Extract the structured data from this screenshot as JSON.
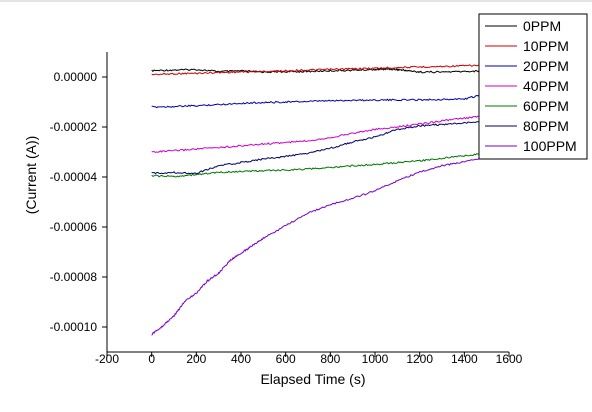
{
  "chart_data": {
    "type": "line",
    "title": "",
    "xlabel": "Elapsed Time (s)",
    "ylabel": "(Current (A))",
    "xlim": [
      -200,
      1600
    ],
    "ylim": [
      -0.00011,
      1e-05
    ],
    "x_ticks": [
      -200,
      0,
      200,
      400,
      600,
      800,
      1000,
      1200,
      1400,
      1600
    ],
    "x_tick_labels": [
      "-200",
      "0",
      "200",
      "400",
      "600",
      "800",
      "1000",
      "1200",
      "1400",
      "1600"
    ],
    "y_ticks": [
      0,
      -2e-05,
      -4e-05,
      -6e-05,
      -8e-05,
      -0.0001
    ],
    "y_tick_labels": [
      "0.00000",
      "-0.00002",
      "-0.00004",
      "-0.00006",
      "-0.00008",
      "-0.00010"
    ],
    "grid": false,
    "legend_position": "top-right",
    "series": [
      {
        "name": "0PPM",
        "color": "#000000",
        "x": [
          0,
          100,
          200,
          300,
          400,
          500,
          600,
          700,
          800,
          900,
          1000,
          1050,
          1100,
          1150,
          1200,
          1300,
          1400,
          1500
        ],
        "y": [
          2.5e-06,
          2.8e-06,
          3e-06,
          2.2e-06,
          2.4e-06,
          2e-06,
          2.1e-06,
          2.2e-06,
          2.5e-06,
          2.7e-06,
          3e-06,
          3.2e-06,
          3e-06,
          2.5e-06,
          2e-06,
          2e-06,
          2.2e-06,
          2.5e-06
        ]
      },
      {
        "name": "10PPM",
        "color": "#cc0000",
        "x": [
          0,
          100,
          200,
          300,
          400,
          500,
          600,
          700,
          800,
          900,
          1000,
          1100,
          1200,
          1300,
          1400,
          1500
        ],
        "y": [
          1e-06,
          1.3e-06,
          1.5e-06,
          1.8e-06,
          2e-06,
          2.2e-06,
          2.5e-06,
          2.8e-06,
          3e-06,
          3.3e-06,
          3.5e-06,
          3.8e-06,
          4e-06,
          4.2e-06,
          4.5e-06,
          4.7e-06
        ]
      },
      {
        "name": "20PPM",
        "color": "#0000aa",
        "x": [
          0,
          100,
          200,
          300,
          400,
          500,
          600,
          700,
          800,
          900,
          1000,
          1100,
          1200,
          1300,
          1400,
          1500
        ],
        "y": [
          -1.2e-05,
          -1.18e-05,
          -1.15e-05,
          -1.1e-05,
          -1.05e-05,
          -1.02e-05,
          -1e-05,
          -9.8e-06,
          -9.5e-06,
          -9.3e-06,
          -9.2e-06,
          -9.2e-06,
          -9.1e-06,
          -9e-06,
          -8.8e-06,
          -6.8e-06
        ]
      },
      {
        "name": "40PPM",
        "color": "#cc00cc",
        "x": [
          0,
          100,
          200,
          300,
          400,
          500,
          600,
          700,
          800,
          900,
          1000,
          1100,
          1200,
          1300,
          1400,
          1500
        ],
        "y": [
          -3e-05,
          -2.95e-05,
          -2.88e-05,
          -2.82e-05,
          -2.75e-05,
          -2.68e-05,
          -2.62e-05,
          -2.55e-05,
          -2.42e-05,
          -2.25e-05,
          -2.1e-05,
          -2e-05,
          -1.88e-05,
          -1.75e-05,
          -1.65e-05,
          -1.55e-05
        ]
      },
      {
        "name": "60PPM",
        "color": "#007700",
        "x": [
          0,
          100,
          200,
          300,
          400,
          500,
          600,
          700,
          800,
          900,
          1000,
          1100,
          1200,
          1300,
          1400,
          1500
        ],
        "y": [
          -3.95e-05,
          -3.98e-05,
          -3.9e-05,
          -3.82e-05,
          -3.78e-05,
          -3.75e-05,
          -3.72e-05,
          -3.68e-05,
          -3.62e-05,
          -3.55e-05,
          -3.5e-05,
          -3.42e-05,
          -3.35e-05,
          -3.25e-05,
          -3.15e-05,
          -3.05e-05
        ]
      },
      {
        "name": "80PPM",
        "color": "#000066",
        "x": [
          0,
          100,
          200,
          300,
          400,
          500,
          600,
          700,
          800,
          900,
          1000,
          1100,
          1200,
          1300,
          1400,
          1500
        ],
        "y": [
          -3.85e-05,
          -3.82e-05,
          -3.85e-05,
          -3.55e-05,
          -3.42e-05,
          -3.28e-05,
          -3.18e-05,
          -3.05e-05,
          -2.85e-05,
          -2.6e-05,
          -2.4e-05,
          -2.1e-05,
          -1.95e-05,
          -1.9e-05,
          -1.83e-05,
          -1.75e-05
        ]
      },
      {
        "name": "100PPM",
        "color": "#7700cc",
        "x": [
          0,
          50,
          100,
          150,
          200,
          250,
          300,
          350,
          400,
          450,
          500,
          600,
          700,
          800,
          900,
          1000,
          1100,
          1200,
          1300,
          1400,
          1500
        ],
        "y": [
          -0.000103,
          -9.95e-05,
          -9.55e-05,
          -8.95e-05,
          -8.65e-05,
          -8.15e-05,
          -7.85e-05,
          -7.35e-05,
          -7.05e-05,
          -6.75e-05,
          -6.45e-05,
          -5.95e-05,
          -5.45e-05,
          -5.1e-05,
          -4.85e-05,
          -4.55e-05,
          -4.15e-05,
          -3.8e-05,
          -3.55e-05,
          -3.4e-05,
          -3.2e-05
        ]
      }
    ]
  }
}
